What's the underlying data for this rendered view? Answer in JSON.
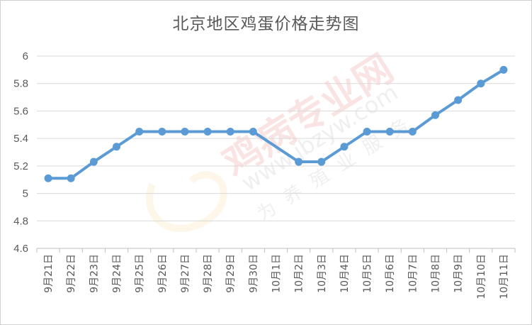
{
  "chart_data": {
    "type": "line",
    "title": "北京地区鸡蛋价格走势图",
    "xlabel": "",
    "ylabel": "",
    "ylim": [
      4.6,
      6
    ],
    "yticks": [
      "4.6",
      "4.8",
      "5",
      "5.2",
      "5.4",
      "5.6",
      "5.8",
      "6"
    ],
    "grid": true,
    "legend": "none",
    "line_color": "#5b9bd5",
    "categories": [
      "9月21日",
      "9月22日",
      "9月23日",
      "9月24日",
      "9月25日",
      "9月26日",
      "9月27日",
      "9月28日",
      "9月29日",
      "9月30日",
      "10月1日",
      "10月2日",
      "10月3日",
      "10月4日",
      "10月5日",
      "10月6日",
      "10月7日",
      "10月8日",
      "10月9日",
      "10月10日",
      "10月11日"
    ],
    "series": [
      {
        "values": [
          5.11,
          5.11,
          5.23,
          5.34,
          5.45,
          5.45,
          5.45,
          5.45,
          5.45,
          5.45,
          null,
          5.23,
          5.23,
          5.34,
          5.45,
          5.45,
          5.45,
          5.57,
          5.68,
          5.8,
          5.9
        ]
      }
    ]
  },
  "watermark": {
    "brand": "鸡病专业网",
    "url": "www.jbzyw.com",
    "slogan": "为养殖业服务"
  }
}
